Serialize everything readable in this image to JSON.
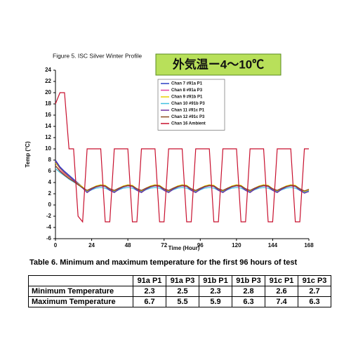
{
  "chart_data": {
    "type": "line",
    "title": "Figure 5.  ISC Silver Winter Profile",
    "annotation": "外気温ー4～10℃",
    "xlabel": "Time (Hour)",
    "ylabel": "Temp (°C)",
    "xlim": [
      0,
      168
    ],
    "xticks": [
      0,
      24,
      48,
      72,
      96,
      120,
      144,
      168
    ],
    "ylim": [
      -6,
      24
    ],
    "yticks": [
      -6,
      -4,
      -2,
      0,
      2,
      4,
      6,
      8,
      10,
      12,
      14,
      16,
      18,
      20,
      22,
      24
    ],
    "x": [
      0,
      3,
      6,
      9,
      12,
      15,
      18,
      21,
      24,
      27,
      30,
      33,
      36,
      39,
      42,
      45,
      48,
      51,
      54,
      57,
      60,
      63,
      66,
      69,
      72,
      75,
      78,
      81,
      84,
      87,
      90,
      93,
      96,
      99,
      102,
      105,
      108,
      111,
      114,
      117,
      120,
      123,
      126,
      129,
      132,
      135,
      138,
      141,
      144,
      147,
      150,
      153,
      156,
      159,
      162,
      165,
      168
    ],
    "series": [
      {
        "name": "Chan 7 #91a P1",
        "color": "#2b3fc4",
        "values": [
          8,
          6.8,
          6,
          5.3,
          4.6,
          3.9,
          3.2,
          2.4,
          2.9,
          3.3,
          3.5,
          3.4,
          2.8,
          2.4,
          2.9,
          3.3,
          3.5,
          3.4,
          2.8,
          2.4,
          2.9,
          3.3,
          3.5,
          3.4,
          2.8,
          2.4,
          2.9,
          3.3,
          3.5,
          3.4,
          2.8,
          2.4,
          2.9,
          3.3,
          3.5,
          3.4,
          2.8,
          2.4,
          2.9,
          3.3,
          3.5,
          3.4,
          2.8,
          2.4,
          2.9,
          3.3,
          3.5,
          3.4,
          2.8,
          2.4,
          2.9,
          3.3,
          3.5,
          3.4,
          2.8,
          2.3,
          2.6
        ]
      },
      {
        "name": "Chan 8 #91a P3",
        "color": "#e040a0",
        "values": [
          7,
          6.2,
          5.5,
          4.9,
          4.3,
          3.7,
          3.1,
          2.6,
          3,
          3.3,
          3.4,
          3.3,
          2.9,
          2.6,
          3,
          3.3,
          3.4,
          3.3,
          2.9,
          2.6,
          3,
          3.3,
          3.4,
          3.3,
          2.9,
          2.6,
          3,
          3.3,
          3.4,
          3.3,
          2.9,
          2.6,
          3,
          3.3,
          3.4,
          3.3,
          2.9,
          2.6,
          3,
          3.3,
          3.4,
          3.3,
          2.9,
          2.6,
          3,
          3.3,
          3.4,
          3.3,
          2.9,
          2.6,
          3,
          3.3,
          3.4,
          3.3,
          2.9,
          2.5,
          2.7
        ]
      },
      {
        "name": "Chan 9 #91b P1",
        "color": "#e8d000",
        "values": [
          7.5,
          6.5,
          5.7,
          5,
          4.4,
          3.8,
          3.2,
          2.5,
          3,
          3.4,
          3.6,
          3.5,
          2.9,
          2.5,
          3,
          3.4,
          3.6,
          3.5,
          2.9,
          2.5,
          3,
          3.4,
          3.6,
          3.5,
          2.9,
          2.5,
          3,
          3.4,
          3.6,
          3.5,
          2.9,
          2.5,
          3,
          3.4,
          3.6,
          3.5,
          2.9,
          2.5,
          3,
          3.4,
          3.6,
          3.5,
          2.9,
          2.5,
          3,
          3.4,
          3.6,
          3.5,
          2.9,
          2.5,
          3,
          3.4,
          3.6,
          3.5,
          2.9,
          2.4,
          2.7
        ]
      },
      {
        "name": "Chan 10 #91b P3",
        "color": "#40c0e0",
        "values": [
          6.5,
          5.8,
          5.2,
          4.6,
          4.1,
          3.6,
          3,
          2.3,
          2.7,
          3,
          3.1,
          3,
          2.6,
          2.3,
          2.7,
          3,
          3.1,
          3,
          2.6,
          2.3,
          2.7,
          3,
          3.1,
          3,
          2.6,
          2.3,
          2.7,
          3,
          3.1,
          3,
          2.6,
          2.3,
          2.7,
          3,
          3.1,
          3,
          2.6,
          2.3,
          2.7,
          3,
          3.1,
          3,
          2.6,
          2.3,
          2.7,
          3,
          3.1,
          3,
          2.6,
          2.3,
          2.7,
          3,
          3.1,
          3,
          2.6,
          2.2,
          2.5
        ]
      },
      {
        "name": "Chan 11 #91c P1",
        "color": "#7030a0",
        "values": [
          7.8,
          6.6,
          5.8,
          5.1,
          4.4,
          3.7,
          3,
          2.2,
          2.8,
          3.2,
          3.4,
          3.3,
          2.6,
          2.2,
          2.8,
          3.2,
          3.4,
          3.3,
          2.6,
          2.2,
          2.8,
          3.2,
          3.4,
          3.3,
          2.6,
          2.2,
          2.8,
          3.2,
          3.4,
          3.3,
          2.6,
          2.2,
          2.8,
          3.2,
          3.4,
          3.3,
          2.6,
          2.2,
          2.8,
          3.2,
          3.4,
          3.3,
          2.6,
          2.2,
          2.8,
          3.2,
          3.4,
          3.3,
          2.6,
          2.2,
          2.8,
          3.2,
          3.4,
          3.3,
          2.6,
          2.1,
          2.4
        ]
      },
      {
        "name": "Chan 12 #91c P3",
        "color": "#8b4a20",
        "values": [
          7,
          6,
          5.3,
          4.7,
          4.2,
          3.6,
          3.1,
          2.6,
          3,
          3.3,
          3.5,
          3.4,
          2.9,
          2.6,
          3,
          3.3,
          3.5,
          3.4,
          2.9,
          2.6,
          3,
          3.3,
          3.5,
          3.4,
          2.9,
          2.6,
          3,
          3.3,
          3.5,
          3.4,
          2.9,
          2.6,
          3,
          3.3,
          3.5,
          3.4,
          2.9,
          2.6,
          3,
          3.3,
          3.5,
          3.4,
          2.9,
          2.6,
          3,
          3.3,
          3.5,
          3.4,
          2.9,
          2.6,
          3,
          3.3,
          3.5,
          3.4,
          2.9,
          2.5,
          2.8
        ]
      },
      {
        "name": "Chan 16 Ambient",
        "color": "#c8102e",
        "values": [
          18,
          20,
          20,
          10,
          10,
          -2,
          -3,
          10,
          10,
          10,
          10,
          -3,
          -3,
          10,
          10,
          10,
          10,
          -3,
          -3,
          10,
          10,
          10,
          10,
          -3,
          -3,
          10,
          10,
          10,
          10,
          -3,
          -3,
          10,
          10,
          10,
          10,
          -3,
          -3,
          10,
          10,
          10,
          10,
          -3,
          -3,
          10,
          10,
          10,
          10,
          -3,
          -3,
          10,
          10,
          10,
          10,
          -3,
          -3,
          10,
          10
        ]
      }
    ]
  },
  "table": {
    "title": "Table 6.  Minimum and maximum temperature for the first 96 hours of test",
    "header": [
      "91a P1",
      "91a P3",
      "91b P1",
      "91b P3",
      "91c P1",
      "91c P3"
    ],
    "rows": [
      [
        "Minimum Temperature",
        2.3,
        2.5,
        2.3,
        2.8,
        2.6,
        2.7
      ],
      [
        "Maximum Temperature",
        6.7,
        5.5,
        5.9,
        6.3,
        7.4,
        6.3
      ]
    ]
  }
}
